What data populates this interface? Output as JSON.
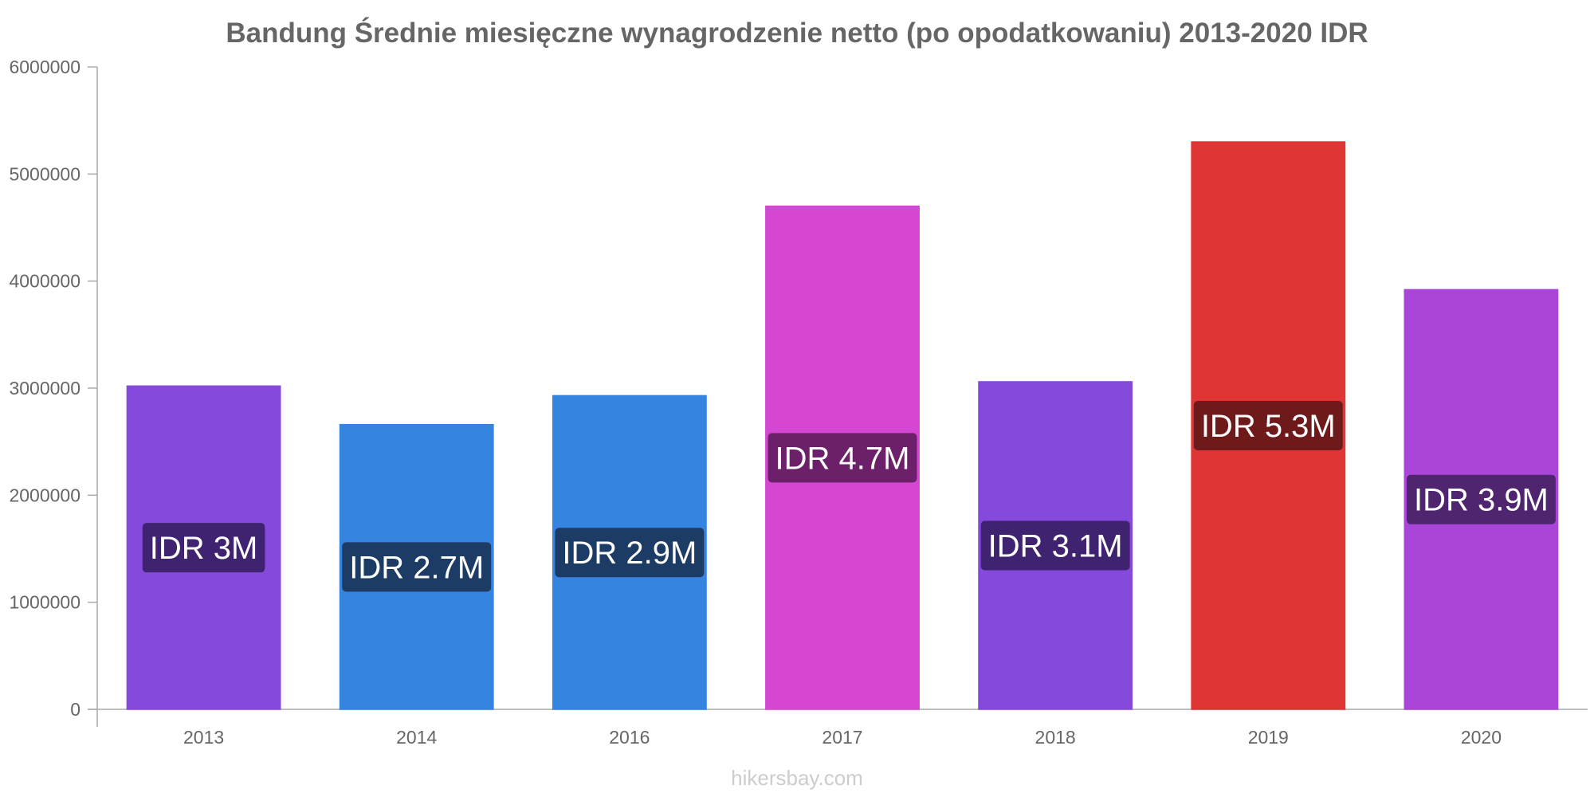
{
  "chart_data": {
    "type": "bar",
    "title": "Bandung Średnie miesięczne wynagrodzenie netto (po opodatkowaniu) 2013-2020 IDR",
    "xlabel": "",
    "ylabel": "",
    "categories": [
      "2013",
      "2014",
      "2016",
      "2017",
      "2018",
      "2019",
      "2020"
    ],
    "values": [
      3020000,
      2660000,
      2930000,
      4700000,
      3060000,
      5300000,
      3920000
    ],
    "data_labels": [
      "IDR 3M",
      "IDR 2.7M",
      "IDR 2.9M",
      "IDR 4.7M",
      "IDR 3.1M",
      "IDR 5.3M",
      "IDR 3.9M"
    ],
    "bar_colors": [
      "#8549db",
      "#3584e0",
      "#3584e0",
      "#d546d3",
      "#8549db",
      "#e03535",
      "#a946d9"
    ],
    "label_bg_colors": [
      "#3f2370",
      "#1c3c66",
      "#1c3c66",
      "#6b2069",
      "#3f2370",
      "#6e1a1a",
      "#4f2570"
    ],
    "ylim": [
      0,
      6000000
    ],
    "yticks": [
      0,
      1000000,
      2000000,
      3000000,
      4000000,
      5000000,
      6000000
    ],
    "ytick_labels": [
      "0",
      "1000000",
      "2000000",
      "3000000",
      "4000000",
      "5000000",
      "6000000"
    ],
    "grid": false,
    "legend": "none"
  },
  "footer": {
    "watermark": "hikersbay.com"
  },
  "colors": {
    "axis": "#aaaaaa",
    "text": "#666666",
    "watermark": "#cccccc"
  }
}
